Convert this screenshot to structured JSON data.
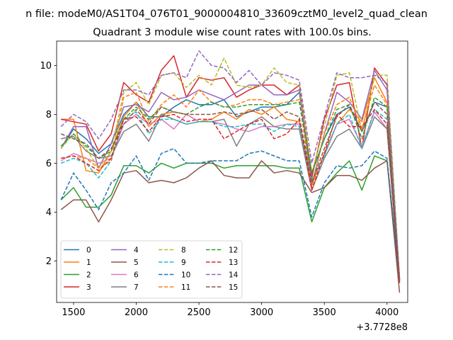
{
  "figure": {
    "suptitle": "n file: modeM0/AS1T04_076T01_9000004810_33609cztM0_level2_quad_clean",
    "title": "Quadrant 3 module wise count rates with 100.0s bins.",
    "offset_label": "+3.7728e8"
  },
  "chart_data": {
    "type": "line",
    "title": "Quadrant 3 module wise count rates with 100.0s bins.",
    "xlabel": "",
    "ylabel": "",
    "x_offset": 377280000,
    "xlim": [
      1365,
      4165
    ],
    "ylim": [
      0.3,
      11.0
    ],
    "xticks": [
      1500,
      2000,
      2500,
      3000,
      3500,
      4000
    ],
    "yticks": [
      2,
      4,
      6,
      8,
      10
    ],
    "grid": false,
    "legend": {
      "location": "lower left",
      "columns": 4
    },
    "x": [
      1400,
      1500,
      1600,
      1700,
      1800,
      1900,
      2000,
      2100,
      2200,
      2300,
      2400,
      2500,
      2600,
      2700,
      2800,
      2900,
      3000,
      3100,
      3200,
      3300,
      3400,
      3500,
      3600,
      3700,
      3800,
      3900,
      4000,
      4100
    ],
    "series": [
      {
        "name": "0",
        "color": "#1f77b4",
        "dash": "solid",
        "values": [
          6.6,
          7.4,
          7.0,
          6.4,
          6.8,
          8.0,
          8.5,
          7.9,
          7.9,
          8.3,
          8.6,
          8.4,
          8.4,
          8.6,
          7.9,
          8.1,
          8.3,
          8.3,
          8.4,
          8.9,
          5.6,
          7.0,
          8.0,
          8.3,
          7.3,
          8.5,
          8.3,
          1.3
        ]
      },
      {
        "name": "1",
        "color": "#ff7f0e",
        "dash": "solid",
        "values": [
          7.8,
          7.8,
          5.7,
          5.6,
          6.5,
          7.9,
          8.5,
          7.5,
          8.0,
          8.1,
          8.0,
          7.7,
          7.8,
          8.1,
          7.8,
          8.2,
          8.0,
          8.3,
          7.8,
          7.7,
          5.1,
          6.4,
          7.6,
          8.2,
          7.7,
          9.5,
          8.5,
          1.2
        ]
      },
      {
        "name": "2",
        "color": "#2ca02c",
        "dash": "solid",
        "values": [
          4.5,
          5.0,
          4.2,
          4.2,
          4.7,
          5.9,
          5.9,
          5.6,
          6.0,
          5.8,
          6.0,
          6.0,
          6.0,
          5.8,
          5.9,
          5.9,
          5.9,
          5.9,
          5.8,
          5.8,
          3.6,
          5.0,
          5.6,
          6.1,
          4.9,
          6.3,
          6.1,
          1.2
        ]
      },
      {
        "name": "3",
        "color": "#d62728",
        "dash": "solid",
        "values": [
          7.8,
          7.7,
          7.6,
          6.5,
          7.2,
          9.3,
          8.8,
          8.5,
          9.8,
          10.4,
          8.7,
          9.5,
          9.4,
          9.5,
          8.7,
          9.0,
          9.2,
          9.2,
          8.8,
          9.2,
          5.4,
          7.8,
          9.2,
          9.3,
          6.6,
          9.9,
          9.2,
          1.2
        ]
      },
      {
        "name": "4",
        "color": "#9467bd",
        "dash": "solid",
        "values": [
          6.6,
          7.5,
          7.5,
          5.8,
          6.8,
          8.3,
          8.4,
          8.1,
          8.9,
          8.6,
          8.7,
          9.0,
          8.8,
          8.6,
          8.9,
          9.2,
          9.2,
          8.8,
          8.8,
          9.0,
          5.1,
          7.2,
          8.9,
          8.5,
          7.8,
          9.8,
          9.0,
          1.2
        ]
      },
      {
        "name": "5",
        "color": "#8c564b",
        "dash": "solid",
        "values": [
          4.1,
          4.5,
          4.5,
          3.6,
          4.5,
          5.6,
          5.7,
          5.2,
          5.3,
          5.2,
          5.4,
          5.8,
          6.1,
          5.5,
          5.4,
          5.4,
          6.1,
          5.6,
          5.7,
          5.6,
          4.8,
          5.0,
          5.5,
          5.5,
          5.3,
          5.8,
          6.1,
          0.7
        ]
      },
      {
        "name": "6",
        "color": "#e377c2",
        "dash": "solid",
        "values": [
          6.1,
          6.4,
          6.2,
          6.0,
          6.2,
          7.6,
          8.0,
          7.6,
          7.8,
          7.4,
          8.0,
          7.7,
          7.7,
          7.6,
          7.4,
          7.3,
          7.5,
          7.5,
          7.6,
          7.6,
          5.3,
          6.3,
          7.6,
          7.8,
          6.7,
          8.1,
          7.4,
          1.1
        ]
      },
      {
        "name": "7",
        "color": "#7f7f7f",
        "dash": "solid",
        "values": [
          7.0,
          7.1,
          6.5,
          6.2,
          6.3,
          7.3,
          7.6,
          6.9,
          8.0,
          7.8,
          7.6,
          7.7,
          7.7,
          7.8,
          6.7,
          7.6,
          7.9,
          7.5,
          7.4,
          7.4,
          4.9,
          6.2,
          7.1,
          7.4,
          6.6,
          7.9,
          7.4,
          1.1
        ]
      },
      {
        "name": "8",
        "color": "#bcbd22",
        "dash": "dashed",
        "values": [
          6.6,
          7.2,
          6.6,
          5.8,
          6.5,
          8.9,
          9.3,
          8.4,
          9.6,
          9.7,
          9.1,
          9.6,
          9.2,
          10.3,
          9.2,
          9.1,
          9.2,
          9.9,
          9.3,
          9.2,
          5.6,
          7.5,
          9.6,
          9.7,
          7.3,
          9.6,
          9.6,
          1.3
        ]
      },
      {
        "name": "9",
        "color": "#17becf",
        "dash": "dashed",
        "values": [
          6.0,
          6.2,
          6.0,
          5.4,
          6.1,
          7.8,
          8.1,
          7.2,
          7.8,
          7.8,
          7.6,
          7.7,
          7.7,
          7.5,
          7.5,
          7.6,
          7.6,
          7.3,
          7.6,
          7.5,
          5.3,
          6.3,
          7.6,
          8.0,
          6.6,
          8.2,
          7.8,
          1.2
        ]
      },
      {
        "name": "10",
        "color": "#1f77b4",
        "dash": "dashed",
        "values": [
          4.5,
          5.6,
          4.9,
          4.1,
          5.2,
          5.6,
          6.3,
          5.3,
          6.4,
          6.6,
          6.0,
          6.0,
          6.1,
          6.1,
          6.1,
          6.4,
          6.5,
          6.3,
          6.1,
          6.1,
          3.8,
          5.2,
          5.9,
          5.8,
          5.9,
          6.5,
          6.2,
          1.2
        ]
      },
      {
        "name": "11",
        "color": "#ff7f0e",
        "dash": "dashed",
        "values": [
          6.2,
          6.3,
          6.2,
          5.8,
          6.1,
          8.7,
          8.9,
          7.7,
          8.4,
          8.8,
          8.3,
          9.0,
          8.5,
          8.3,
          8.4,
          8.6,
          8.6,
          8.4,
          8.5,
          8.6,
          5.0,
          7.2,
          8.4,
          8.7,
          7.4,
          9.2,
          8.4,
          1.2
        ]
      },
      {
        "name": "12",
        "color": "#2ca02c",
        "dash": "dashed",
        "values": [
          6.7,
          7.2,
          6.7,
          6.2,
          6.5,
          7.8,
          8.3,
          7.8,
          8.3,
          8.1,
          8.0,
          8.3,
          8.5,
          8.3,
          8.3,
          8.4,
          8.4,
          8.4,
          8.4,
          8.5,
          5.6,
          7.0,
          8.2,
          8.4,
          7.0,
          8.7,
          8.3,
          1.2
        ]
      },
      {
        "name": "13",
        "color": "#d62728",
        "dash": "dashed",
        "values": [
          6.2,
          6.3,
          6.0,
          5.7,
          6.2,
          7.8,
          7.9,
          7.3,
          7.9,
          8.0,
          7.7,
          7.8,
          7.8,
          7.0,
          7.3,
          7.6,
          7.8,
          7.0,
          7.2,
          7.8,
          4.9,
          6.4,
          8.0,
          7.5,
          7.5,
          8.2,
          7.6,
          1.1
        ]
      },
      {
        "name": "14",
        "color": "#9467bd",
        "dash": "dashed",
        "values": [
          7.5,
          8.0,
          7.7,
          7.0,
          7.8,
          9.0,
          9.0,
          8.8,
          9.6,
          9.7,
          9.5,
          10.6,
          10.0,
          9.9,
          9.3,
          9.8,
          9.2,
          9.7,
          9.6,
          9.4,
          6.0,
          7.9,
          9.7,
          9.5,
          9.5,
          9.6,
          9.3,
          1.3
        ]
      },
      {
        "name": "15",
        "color": "#8c564b",
        "dash": "dashed",
        "values": [
          7.2,
          7.0,
          6.8,
          6.2,
          6.6,
          7.6,
          8.2,
          7.6,
          8.3,
          8.1,
          8.0,
          8.0,
          8.0,
          8.1,
          8.0,
          8.1,
          8.2,
          7.8,
          8.1,
          7.9,
          5.2,
          6.6,
          7.9,
          8.4,
          7.3,
          8.5,
          8.0,
          1.2
        ]
      }
    ]
  }
}
